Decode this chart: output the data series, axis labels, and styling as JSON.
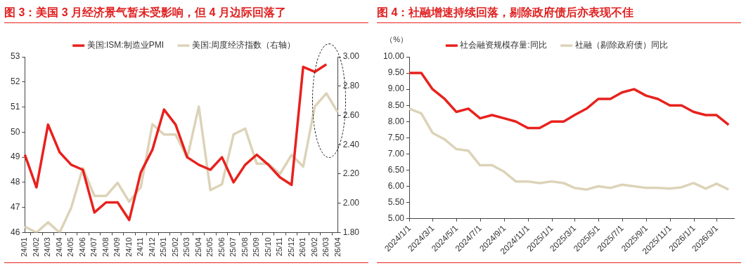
{
  "chart_data": [
    {
      "type": "line",
      "title": "图 3：美国 3 月经济景气暂未受影响，但 4 月边际回落了",
      "categories": [
        "24/01",
        "24/02",
        "24/03",
        "24/04",
        "24/05",
        "24/06",
        "24/07",
        "24/08",
        "24/09",
        "24/10",
        "24/11",
        "24/12",
        "25/01",
        "25/02",
        "25/03",
        "25/04",
        "25/05",
        "25/06",
        "25/07",
        "25/08",
        "25/09",
        "25/10",
        "25/11",
        "25/12",
        "26/01",
        "26/02",
        "26/03",
        "26/04"
      ],
      "series": [
        {
          "name": "美国:ISM:制造业PMI",
          "color": "#e8211d",
          "values": [
            49.1,
            47.8,
            50.3,
            49.2,
            48.7,
            48.5,
            46.8,
            47.2,
            47.2,
            46.5,
            48.4,
            49.3,
            50.9,
            50.3,
            49.0,
            48.7,
            48.5,
            49.0,
            48.0,
            48.7,
            49.1,
            48.7,
            48.2,
            47.9,
            52.6,
            52.4,
            52.7,
            null
          ]
        },
        {
          "name": "美国:周度经济指数（右轴）",
          "color": "#dcd3b8",
          "axis": "y2",
          "values": [
            1.84,
            1.8,
            1.87,
            1.8,
            1.97,
            2.24,
            2.05,
            2.05,
            2.14,
            2.01,
            2.11,
            2.54,
            2.47,
            2.47,
            2.31,
            2.66,
            2.09,
            2.13,
            2.47,
            2.51,
            2.27,
            2.27,
            2.2,
            2.33,
            2.25,
            2.66,
            2.75,
            2.62
          ]
        }
      ],
      "ylim": [
        46,
        53
      ],
      "yticks": [
        46,
        47,
        48,
        49,
        50,
        51,
        52,
        53
      ],
      "y2lim": [
        1.8,
        3.0
      ],
      "y2ticks": [
        {
          "value": 1.8,
          "label": "1.80"
        },
        {
          "value": 2.0,
          "label": "2.00"
        },
        {
          "value": 2.2,
          "label": "2.20"
        },
        {
          "value": 2.4,
          "label": "2.40"
        },
        {
          "value": 2.6,
          "label": "2.60"
        },
        {
          "value": 2.8,
          "label": "2.80"
        },
        {
          "value": 3.0,
          "label": "3.00"
        }
      ],
      "legend": "top",
      "grid": false,
      "marker": "none"
    },
    {
      "type": "line",
      "title": "图 4：社融增速持续回落，剔除政府债后亦表现不佳",
      "ylabel": "（%）",
      "x": [
        "2023-12-31",
        "2024-01-31",
        "2024-02-29",
        "2024-03-31",
        "2024-04-30",
        "2024-05-31",
        "2024-06-30",
        "2024-07-31",
        "2024-08-31",
        "2024-09-30",
        "2024-10-31",
        "2024-11-30",
        "2024-12-31",
        "2025-01-31",
        "2025-02-28",
        "2025-03-31",
        "2025-04-30",
        "2025-05-31",
        "2025-06-30",
        "2025-07-31",
        "2025-08-31",
        "2025-09-30",
        "2025-10-31",
        "2025-11-30",
        "2025-12-31",
        "2026-01-31",
        "2026-02-28",
        "2026-03-31"
      ],
      "series": [
        {
          "name": "社会融资规模存量:同比",
          "color": "#e8211d",
          "values": [
            9.5,
            9.5,
            9.0,
            8.7,
            8.3,
            8.4,
            8.1,
            8.2,
            8.1,
            8.0,
            7.8,
            7.8,
            8.0,
            8.0,
            8.2,
            8.4,
            8.7,
            8.7,
            8.9,
            9.0,
            8.8,
            8.7,
            8.5,
            8.5,
            8.3,
            8.2,
            8.2,
            7.9
          ]
        },
        {
          "name": "社融（剔除政府债）同比",
          "color": "#dcd3b8",
          "values": [
            8.4,
            8.25,
            7.65,
            7.45,
            7.15,
            7.1,
            6.65,
            6.65,
            6.45,
            6.15,
            6.15,
            6.1,
            6.15,
            6.1,
            5.95,
            5.9,
            6.0,
            5.95,
            6.05,
            6.0,
            5.95,
            5.95,
            5.93,
            5.97,
            6.1,
            5.93,
            6.08,
            5.9
          ]
        }
      ],
      "xlim": [
        "2023-12-31",
        "2026-04-14"
      ],
      "xticks": [
        {
          "value": "2024-01-01",
          "label": "2024/1/1"
        },
        {
          "value": "2024-03-01",
          "label": "2024/3/1"
        },
        {
          "value": "2024-05-01",
          "label": "2024/5/1"
        },
        {
          "value": "2024-07-01",
          "label": "2024/7/1"
        },
        {
          "value": "2024-09-01",
          "label": "2024/9/1"
        },
        {
          "value": "2024-11-01",
          "label": "2024/11/1"
        },
        {
          "value": "2025-01-01",
          "label": "2025/1/1"
        },
        {
          "value": "2025-03-01",
          "label": "2025/3/1"
        },
        {
          "value": "2025-05-01",
          "label": "2025/5/1"
        },
        {
          "value": "2025-07-01",
          "label": "2025/7/1"
        },
        {
          "value": "2025-09-01",
          "label": "2025/9/1"
        },
        {
          "value": "2025-11-01",
          "label": "2025/11/1"
        },
        {
          "value": "2026-01-01",
          "label": "2026/1/1"
        },
        {
          "value": "2026-03-01",
          "label": "2026/3/1"
        }
      ],
      "ylim": [
        5,
        10
      ],
      "yticks": [
        {
          "value": 5,
          "label": "5.00"
        },
        {
          "value": 5.5,
          "label": "5.50"
        },
        {
          "value": 6,
          "label": "6.00"
        },
        {
          "value": 6.5,
          "label": "6.50"
        },
        {
          "value": 7,
          "label": "7.00"
        },
        {
          "value": 7.5,
          "label": "7.50"
        },
        {
          "value": 8,
          "label": "8.00"
        },
        {
          "value": 8.5,
          "label": "8.50"
        },
        {
          "value": 9,
          "label": "9.00"
        },
        {
          "value": 9.5,
          "label": "9.50"
        },
        {
          "value": 10,
          "label": "10.00"
        }
      ],
      "legend": "top",
      "grid": false,
      "marker": "none"
    }
  ]
}
